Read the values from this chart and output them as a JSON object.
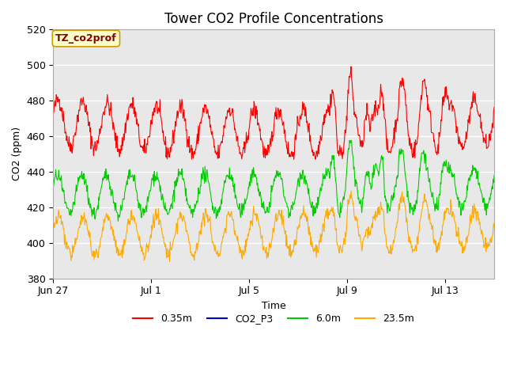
{
  "title": "Tower CO2 Profile Concentrations",
  "xlabel": "Time",
  "ylabel": "CO2 (ppm)",
  "ylim": [
    380,
    520
  ],
  "plot_bg_color": "#e8e8e8",
  "grid_color": "#ffffff",
  "annotation_text": "TZ_co2prof",
  "annotation_bg": "#ffffcc",
  "annotation_border": "#cc9900",
  "annotation_text_color": "#880000",
  "legend_entries": [
    "0.35m",
    "CO2_P3",
    "6.0m",
    "23.5m"
  ],
  "legend_colors": [
    "#ff0000",
    "#0000cc",
    "#00cc00",
    "#ffaa00"
  ],
  "xtick_labels": [
    "Jun 27",
    "Jul 1",
    "Jul 5",
    "Jul 9",
    "Jul 13"
  ],
  "xtick_positions": [
    0,
    4,
    8,
    12,
    16
  ],
  "title_fontsize": 12,
  "label_fontsize": 9,
  "tick_fontsize": 9,
  "legend_fontsize": 9
}
